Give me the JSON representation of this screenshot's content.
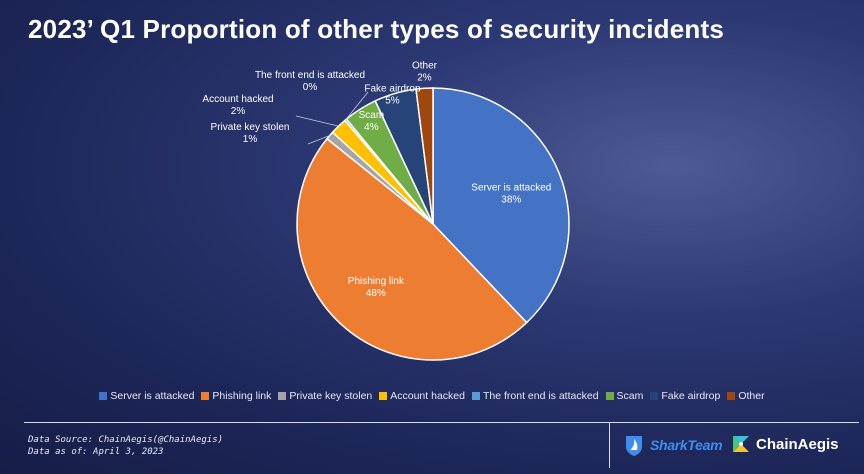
{
  "title": "2023’ Q1 Proportion of other types of security incidents",
  "chart_data": {
    "type": "pie",
    "title": "2023’ Q1 Proportion of other types of security incidents",
    "categories": [
      "Server is attacked",
      "Phishing link",
      "Private key stolen",
      "Account hacked",
      "The front end is attacked",
      "Scam",
      "Fake airdrop",
      "Other"
    ],
    "values": [
      38,
      48,
      1,
      2,
      0,
      4,
      5,
      2
    ],
    "labels": [
      "38%",
      "48%",
      "1%",
      "2%",
      "0%",
      "4%",
      "5%",
      "2%"
    ],
    "colors": [
      "#4472c4",
      "#ed7d31",
      "#a5a5a5",
      "#ffc000",
      "#5b9bd5",
      "#70ad47",
      "#264478",
      "#9e480e"
    ],
    "legend_position": "bottom"
  },
  "legend": [
    {
      "label": "Server is attacked",
      "color": "#4472c4"
    },
    {
      "label": "Phishing link",
      "color": "#ed7d31"
    },
    {
      "label": "Private key stolen",
      "color": "#a5a5a5"
    },
    {
      "label": "Account hacked",
      "color": "#ffc000"
    },
    {
      "label": "The front end is attacked",
      "color": "#5b9bd5"
    },
    {
      "label": "Scam",
      "color": "#70ad47"
    },
    {
      "label": "Fake airdrop",
      "color": "#264478"
    },
    {
      "label": "Other",
      "color": "#9e480e"
    }
  ],
  "footer": {
    "source": "Data Source: ChainAegis(@ChainAegis)",
    "date": "Data as of: April 3, 2023"
  },
  "brands": {
    "sharkteam": "SharkTeam",
    "chainaegis": "ChainAegis",
    "sharkteam_color": "#3f8dee"
  }
}
